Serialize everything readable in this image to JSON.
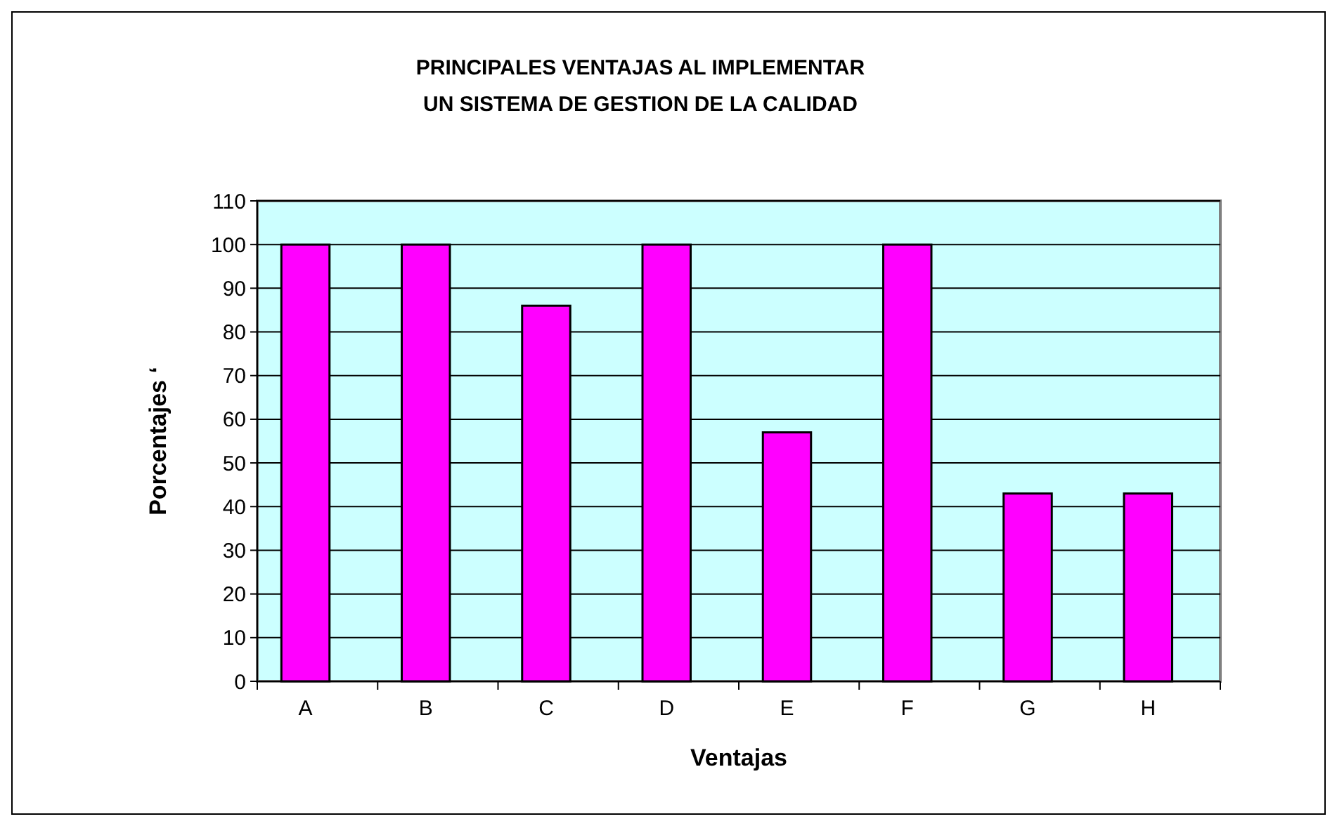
{
  "chart_data": {
    "type": "bar",
    "title": "PRINCIPALES VENTAJAS AL  IMPLEMENTAR UN SISTEMA DE GESTION DE LA CALIDAD",
    "xlabel": "Ventajas",
    "ylabel": "Porcentajes ‘",
    "categories": [
      "A",
      "B",
      "C",
      "D",
      "E",
      "F",
      "G",
      "H"
    ],
    "values": [
      100,
      100,
      86,
      100,
      57,
      100,
      43,
      43
    ],
    "color": "#ff00ff",
    "ylim": [
      0,
      110
    ],
    "yticks": [
      0,
      10,
      20,
      30,
      40,
      50,
      60,
      70,
      80,
      90,
      100,
      110
    ],
    "grid": "y"
  }
}
